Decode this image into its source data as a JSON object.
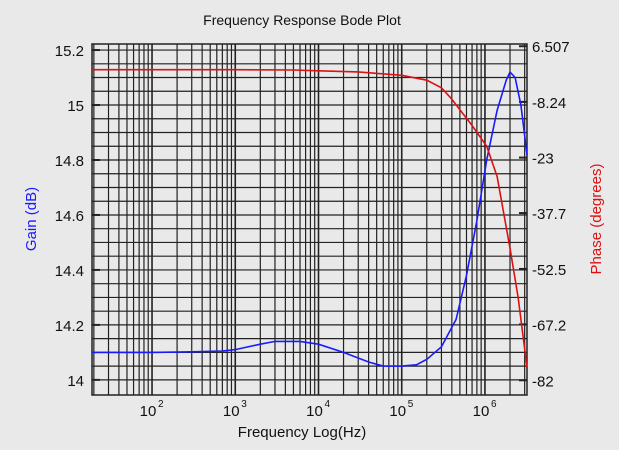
{
  "chart_data": {
    "type": "line",
    "title": "Frequency Response Bode Plot",
    "xlabel": "Frequency Log(Hz)",
    "ylabel": "Gain (dB)",
    "y2label": "Phase (degrees)",
    "xscale": "log",
    "xlim": [
      19,
      3200000
    ],
    "xticks": [
      {
        "v": 100,
        "b": "10",
        "e": "2"
      },
      {
        "v": 1000,
        "b": "10",
        "e": "3"
      },
      {
        "v": 10000,
        "b": "10",
        "e": "4"
      },
      {
        "v": 100000,
        "b": "10",
        "e": "5"
      },
      {
        "v": 1000000,
        "b": "10",
        "e": "6"
      }
    ],
    "ylim": [
      13.945,
      15.222
    ],
    "yticks": [
      "15.2",
      "15",
      "14.8",
      "14.6",
      "14.4",
      "14.2",
      "14"
    ],
    "y2lim": [
      -85.9,
      7.1
    ],
    "y2ticks": [
      "6.507",
      "-8.24",
      "-23",
      "-37.7",
      "-52.5",
      "-67.2",
      "-82"
    ],
    "grid": true,
    "colors": {
      "gain": "#1a1aff",
      "phase": "#dd1111",
      "ylabel": "#1a1aff",
      "y2label": "#dd1111"
    },
    "series": [
      {
        "axis": "left",
        "x": [
          19,
          30,
          100,
          300,
          700,
          1000,
          2000,
          3000,
          6000,
          10000,
          20000,
          40000,
          60000,
          100000,
          150000,
          200000,
          300000,
          450000,
          600000,
          800000,
          1050000,
          1400000,
          1800000,
          2000000,
          2300000,
          2700000,
          3200000
        ],
        "y": [
          14.1,
          14.1,
          14.1,
          14.102,
          14.105,
          14.11,
          14.13,
          14.14,
          14.14,
          14.13,
          14.1,
          14.065,
          14.05,
          14.05,
          14.055,
          14.075,
          14.12,
          14.22,
          14.38,
          14.58,
          14.8,
          14.98,
          15.09,
          15.12,
          15.1,
          15.0,
          14.82
        ]
      },
      {
        "axis": "right",
        "x": [
          19,
          100,
          1000,
          5000,
          10000,
          30000,
          100000,
          200000,
          300000,
          400000,
          540000,
          700000,
          1050000,
          1400000,
          2000000,
          2500000,
          3200000
        ],
        "y": [
          0.3,
          0.3,
          0.3,
          0.2,
          0,
          -0.3,
          -1.2,
          -2.5,
          -4.5,
          -7.5,
          -11.3,
          -14.5,
          -20,
          -28,
          -47,
          -60,
          -78.5
        ]
      }
    ]
  }
}
